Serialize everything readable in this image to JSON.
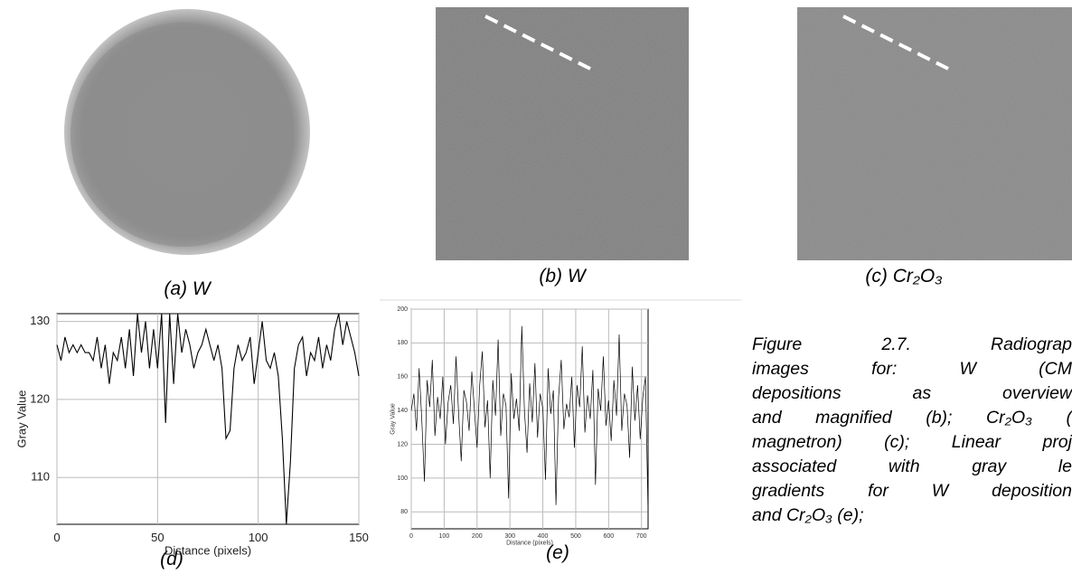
{
  "panels": [
    "(a)  W",
    "(b)  W",
    "(c)  Cr₂O₃",
    "(d)",
    "(e)"
  ],
  "caption": {
    "lines": [
      "Figure 2.7. Radiograp",
      "images for: W (CM",
      "depositions as overview",
      "and magnified (b); Cr₂O₃ (",
      "magnetron) (c); Linear proj",
      "associated with gray le",
      "gradients for W deposition",
      "and Cr₂O₃ (e);"
    ]
  },
  "chart_data": [
    {
      "type": "line",
      "x_label": "Distance (pixels)",
      "y_label": "Gray Value",
      "color": "#000000",
      "grid": true,
      "x": [
        0,
        2,
        4,
        6,
        8,
        10,
        12,
        14,
        16,
        18,
        20,
        22,
        24,
        26,
        28,
        30,
        32,
        34,
        36,
        38,
        40,
        42,
        44,
        46,
        48,
        50,
        52,
        54,
        56,
        58,
        60,
        62,
        64,
        66,
        68,
        70,
        72,
        74,
        76,
        78,
        80,
        82,
        84,
        86,
        88,
        90,
        92,
        94,
        96,
        98,
        100,
        102,
        104,
        106,
        108,
        110,
        112,
        114,
        116,
        118,
        120,
        122,
        124,
        126,
        128,
        130,
        132,
        134,
        136,
        138,
        140,
        142,
        144,
        146,
        148,
        150
      ],
      "values": [
        127,
        125,
        128,
        126,
        127,
        126,
        127,
        126,
        126,
        125,
        128,
        124,
        127,
        122,
        126,
        125,
        128,
        124,
        129,
        123,
        131,
        126,
        130,
        124,
        129,
        124,
        131,
        117,
        131,
        122,
        131,
        126,
        129,
        127,
        124,
        126,
        127,
        129,
        127,
        125,
        127,
        124,
        115,
        116,
        124,
        127,
        125,
        126,
        128,
        122,
        126,
        130,
        125,
        124,
        126,
        123,
        115,
        104,
        112,
        124,
        127,
        128,
        123,
        126,
        125,
        128,
        124,
        127,
        125,
        129,
        131,
        127,
        130,
        128,
        126,
        123
      ],
      "xlim": [
        0,
        150
      ],
      "ylim": [
        104,
        131
      ],
      "xticks": [
        0,
        50,
        100,
        150
      ],
      "yticks": [
        110,
        120,
        130
      ]
    },
    {
      "type": "line",
      "x_label": "Distance (pixels)",
      "y_label": "Gray Value",
      "color": "#000000",
      "grid": true,
      "x": [
        0,
        8,
        16,
        24,
        32,
        40,
        48,
        56,
        64,
        72,
        80,
        88,
        96,
        104,
        112,
        120,
        128,
        136,
        144,
        152,
        160,
        168,
        176,
        184,
        192,
        200,
        208,
        216,
        224,
        232,
        240,
        248,
        256,
        264,
        272,
        280,
        288,
        296,
        304,
        312,
        320,
        328,
        336,
        344,
        352,
        360,
        368,
        376,
        384,
        392,
        400,
        408,
        416,
        424,
        432,
        440,
        448,
        456,
        464,
        472,
        480,
        488,
        496,
        504,
        512,
        520,
        528,
        536,
        544,
        552,
        560,
        568,
        576,
        584,
        592,
        600,
        608,
        616,
        624,
        632,
        640,
        648,
        656,
        664,
        672,
        680,
        688,
        696,
        704,
        712,
        720
      ],
      "values": [
        140,
        150,
        128,
        165,
        135,
        98,
        158,
        142,
        170,
        125,
        148,
        135,
        160,
        120,
        145,
        155,
        132,
        172,
        138,
        110,
        152,
        145,
        128,
        163,
        140,
        118,
        155,
        175,
        130,
        146,
        100,
        158,
        137,
        182,
        125,
        150,
        143,
        88,
        162,
        135,
        147,
        128,
        190,
        140,
        115,
        156,
        133,
        168,
        124,
        150,
        141,
        99,
        165,
        138,
        152,
        84,
        148,
        170,
        129,
        144,
        136,
        160,
        118,
        155,
        142,
        178,
        127,
        149,
        135,
        164,
        96,
        153,
        140,
        172,
        131,
        146,
        122,
        158,
        137,
        185,
        128,
        150,
        143,
        112,
        166,
        134,
        155,
        123,
        148,
        160,
        79
      ],
      "xlim": [
        0,
        720
      ],
      "ylim": [
        70,
        200
      ],
      "xticks": [
        0,
        100,
        200,
        300,
        400,
        500,
        600,
        700
      ],
      "yticks": [
        80,
        100,
        120,
        140,
        160,
        180,
        200
      ]
    }
  ]
}
